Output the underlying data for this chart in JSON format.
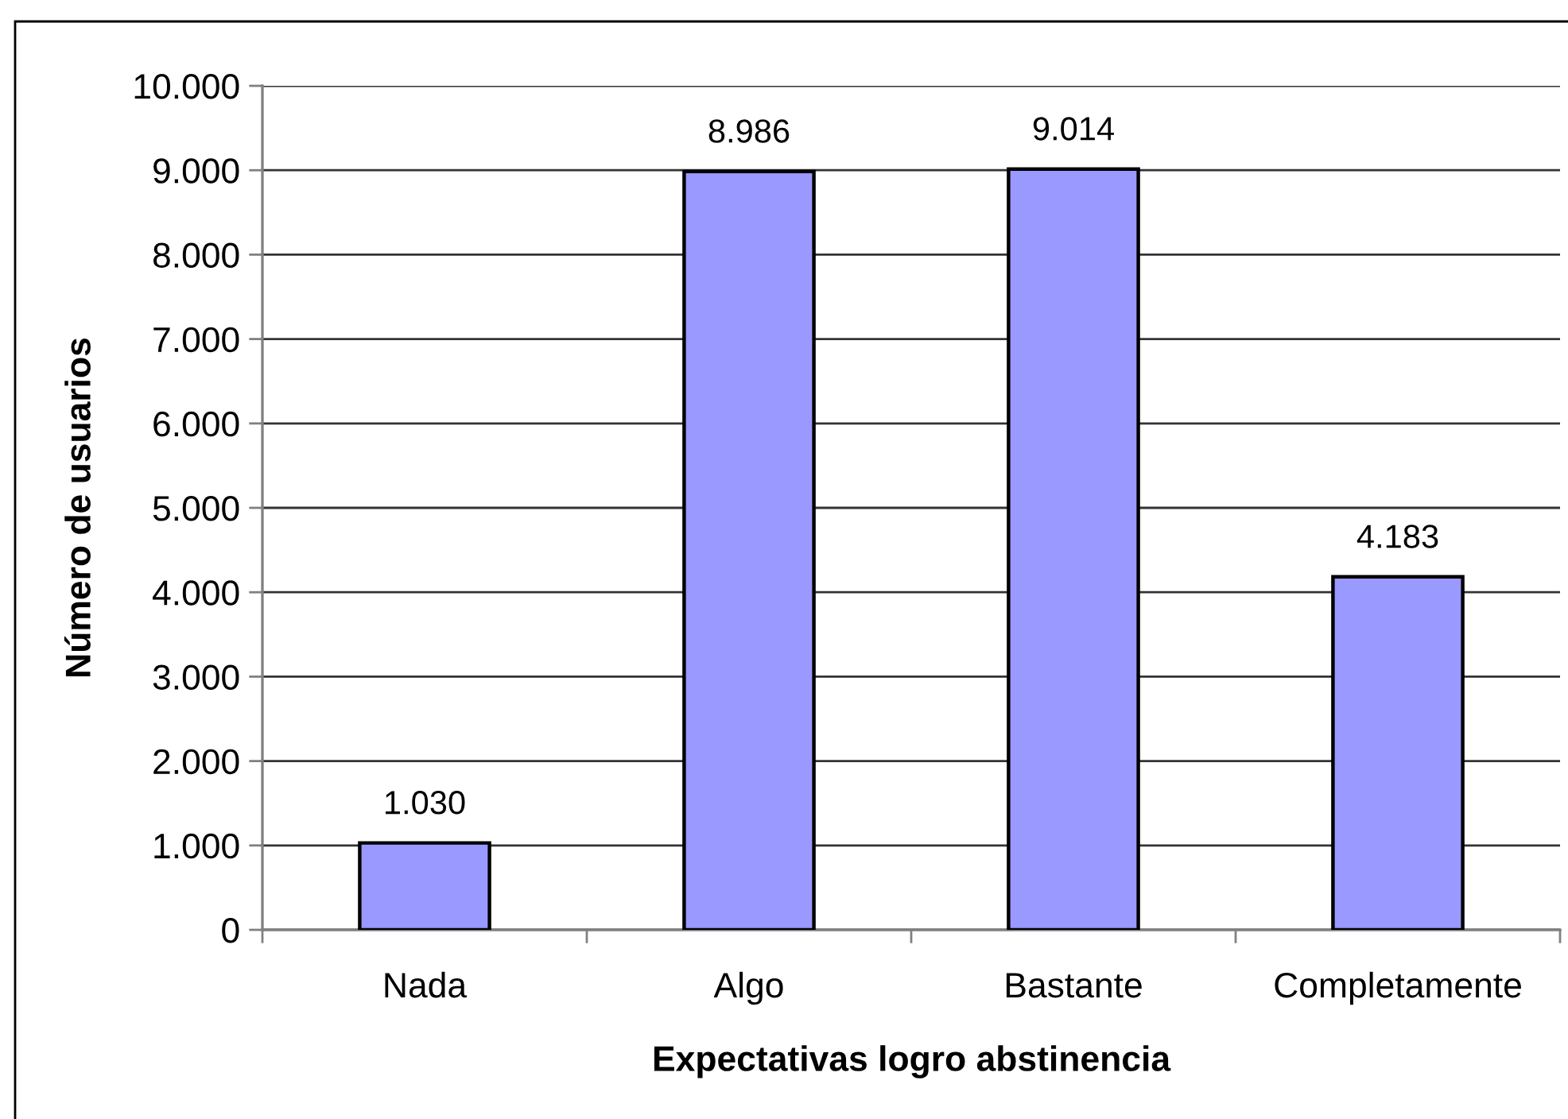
{
  "chart_data": {
    "type": "bar",
    "xlabel": "Expectativas logro abstinencia",
    "ylabel": "Número de usuarios",
    "categories": [
      "Nada",
      "Algo",
      "Bastante",
      "Completamente"
    ],
    "values": [
      1030,
      8986,
      9014,
      4183
    ],
    "value_labels": [
      "1.030",
      "8.986",
      "9.014",
      "4.183"
    ],
    "color": "#9999ff",
    "ylim": [
      0,
      10000
    ],
    "yticks": [
      0,
      {
        "value": 1000,
        "label": "1.000"
      },
      {
        "value": 2000,
        "label": "2.000"
      },
      {
        "value": 3000,
        "label": "3.000"
      },
      {
        "value": 4000,
        "label": "4.000"
      },
      {
        "value": 5000,
        "label": "5.000"
      },
      {
        "value": 6000,
        "label": "6.000"
      },
      {
        "value": 7000,
        "label": "7.000"
      },
      {
        "value": 8000,
        "label": "8.000"
      },
      {
        "value": 9000,
        "label": "9.000"
      },
      {
        "value": 10000,
        "label": "10.000"
      }
    ],
    "grid": "y"
  }
}
